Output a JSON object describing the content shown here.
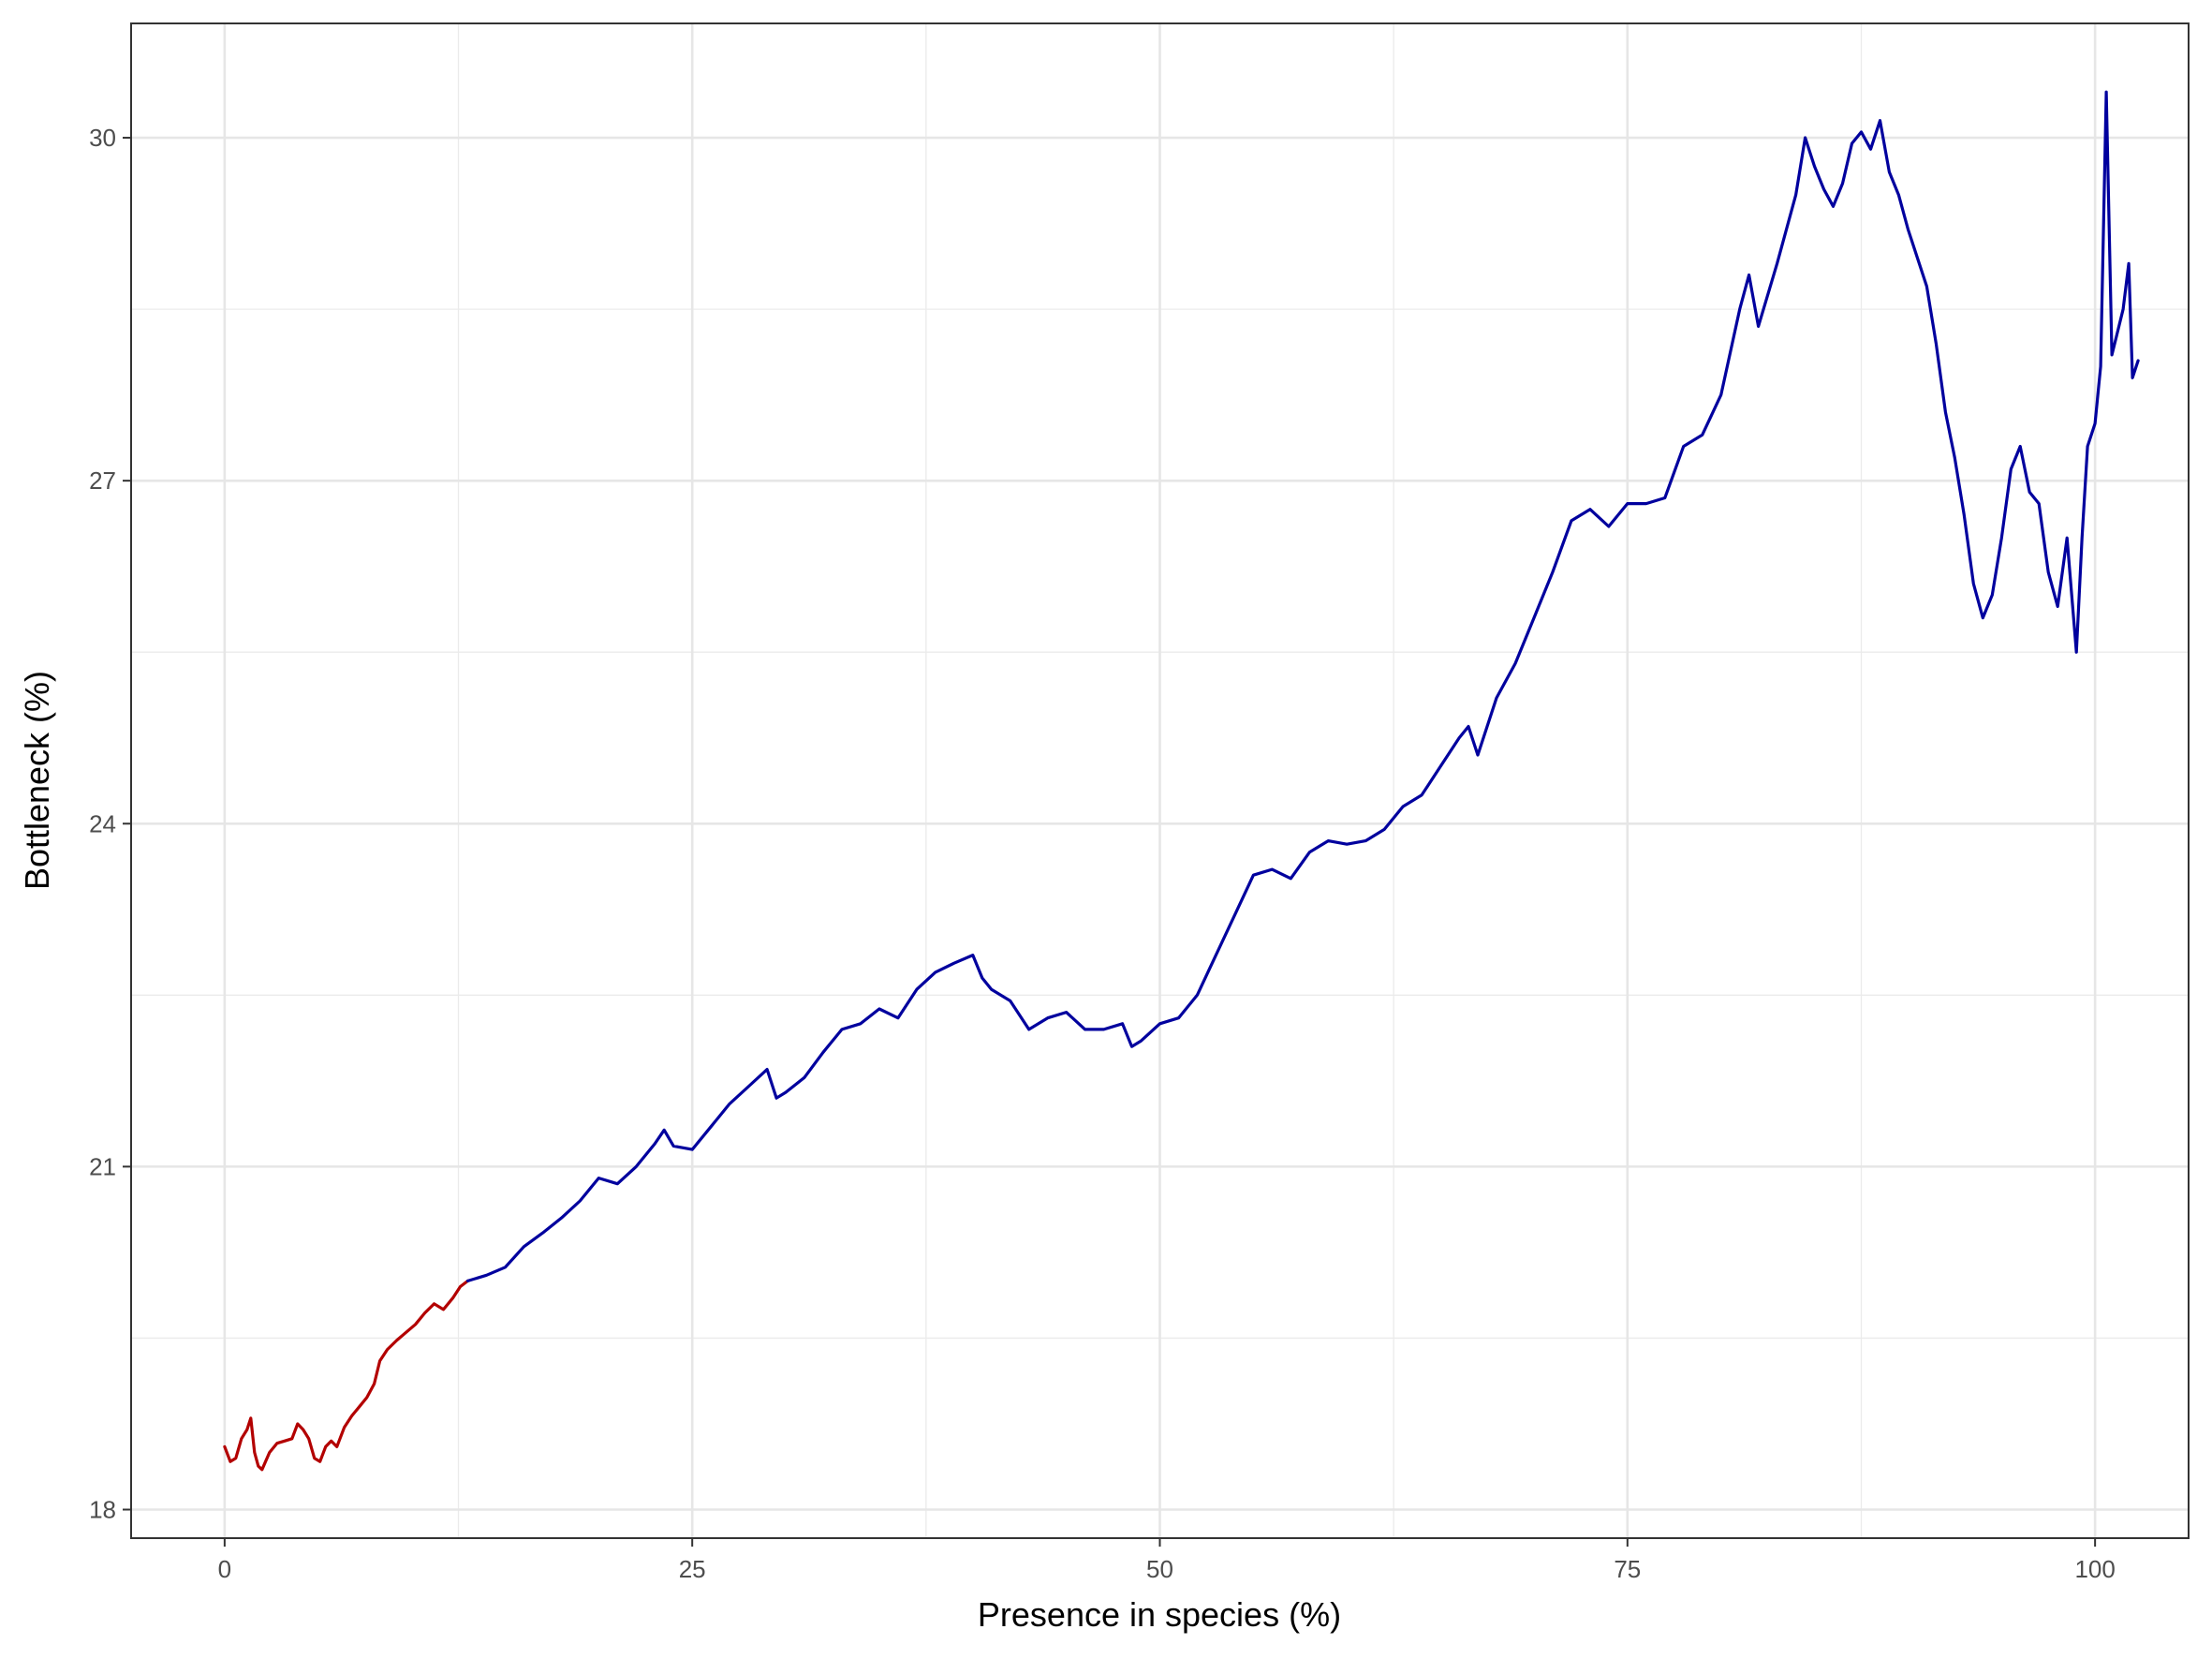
{
  "chart_data": {
    "type": "line",
    "title": "",
    "xlabel": "Presence in species (%)",
    "ylabel": "Bottleneck (%)",
    "xlim": [
      -5,
      105
    ],
    "ylim": [
      17.75,
      31.0
    ],
    "x_ticks": [
      0,
      25,
      50,
      75,
      100
    ],
    "x_tick_labels": [
      "0",
      "25",
      "50",
      "75",
      "100"
    ],
    "y_ticks": [
      18,
      21,
      24,
      27,
      30
    ],
    "y_tick_labels": [
      "18",
      "21",
      "24",
      "27",
      "30"
    ],
    "x_minor_ticks": [
      12.5,
      37.5,
      62.5,
      87.5
    ],
    "y_minor_ticks": [
      19.5,
      22.5,
      25.5,
      28.5
    ],
    "grid": true,
    "legend": "none",
    "series": [
      {
        "color": "#B30000",
        "points": [
          [
            0.0,
            18.55
          ],
          [
            0.3,
            18.42
          ],
          [
            0.6,
            18.45
          ],
          [
            0.9,
            18.62
          ],
          [
            1.2,
            18.7
          ],
          [
            1.4,
            18.8
          ],
          [
            1.6,
            18.5
          ],
          [
            1.8,
            18.38
          ],
          [
            2.0,
            18.35
          ],
          [
            2.4,
            18.5
          ],
          [
            2.8,
            18.58
          ],
          [
            3.2,
            18.6
          ],
          [
            3.6,
            18.62
          ],
          [
            3.9,
            18.75
          ],
          [
            4.2,
            18.7
          ],
          [
            4.5,
            18.62
          ],
          [
            4.8,
            18.45
          ],
          [
            5.1,
            18.42
          ],
          [
            5.4,
            18.55
          ],
          [
            5.7,
            18.6
          ],
          [
            6.0,
            18.55
          ],
          [
            6.4,
            18.72
          ],
          [
            6.8,
            18.82
          ],
          [
            7.2,
            18.9
          ],
          [
            7.6,
            18.98
          ],
          [
            8.0,
            19.1
          ],
          [
            8.3,
            19.3
          ],
          [
            8.7,
            19.4
          ],
          [
            9.2,
            19.48
          ],
          [
            9.7,
            19.55
          ],
          [
            10.2,
            19.62
          ],
          [
            10.7,
            19.72
          ],
          [
            11.2,
            19.8
          ],
          [
            11.7,
            19.75
          ],
          [
            12.2,
            19.85
          ],
          [
            12.6,
            19.95
          ],
          [
            13.0,
            20.0
          ]
        ]
      },
      {
        "color": "#00009E",
        "points": [
          [
            13.0,
            20.0
          ],
          [
            14.0,
            20.05
          ],
          [
            15.0,
            20.12
          ],
          [
            16.0,
            20.3
          ],
          [
            17.0,
            20.42
          ],
          [
            18.0,
            20.55
          ],
          [
            19.0,
            20.7
          ],
          [
            20.0,
            20.9
          ],
          [
            21.0,
            20.85
          ],
          [
            22.0,
            21.0
          ],
          [
            23.0,
            21.2
          ],
          [
            23.5,
            21.32
          ],
          [
            24.0,
            21.18
          ],
          [
            25.0,
            21.15
          ],
          [
            26.0,
            21.35
          ],
          [
            27.0,
            21.55
          ],
          [
            28.0,
            21.7
          ],
          [
            29.0,
            21.85
          ],
          [
            29.5,
            21.6
          ],
          [
            30.0,
            21.65
          ],
          [
            31.0,
            21.78
          ],
          [
            32.0,
            22.0
          ],
          [
            33.0,
            22.2
          ],
          [
            34.0,
            22.25
          ],
          [
            35.0,
            22.38
          ],
          [
            36.0,
            22.3
          ],
          [
            37.0,
            22.55
          ],
          [
            38.0,
            22.7
          ],
          [
            39.0,
            22.78
          ],
          [
            40.0,
            22.85
          ],
          [
            40.5,
            22.65
          ],
          [
            41.0,
            22.55
          ],
          [
            42.0,
            22.45
          ],
          [
            43.0,
            22.2
          ],
          [
            44.0,
            22.3
          ],
          [
            45.0,
            22.35
          ],
          [
            46.0,
            22.2
          ],
          [
            47.0,
            22.2
          ],
          [
            48.0,
            22.25
          ],
          [
            48.5,
            22.05
          ],
          [
            49.0,
            22.1
          ],
          [
            50.0,
            22.25
          ],
          [
            51.0,
            22.3
          ],
          [
            52.0,
            22.5
          ],
          [
            53.0,
            22.85
          ],
          [
            54.0,
            23.2
          ],
          [
            55.0,
            23.55
          ],
          [
            56.0,
            23.6
          ],
          [
            57.0,
            23.52
          ],
          [
            58.0,
            23.75
          ],
          [
            59.0,
            23.85
          ],
          [
            60.0,
            23.82
          ],
          [
            61.0,
            23.85
          ],
          [
            62.0,
            23.95
          ],
          [
            63.0,
            24.15
          ],
          [
            64.0,
            24.25
          ],
          [
            65.0,
            24.5
          ],
          [
            66.0,
            24.75
          ],
          [
            66.5,
            24.85
          ],
          [
            67.0,
            24.6
          ],
          [
            68.0,
            25.1
          ],
          [
            69.0,
            25.4
          ],
          [
            70.0,
            25.8
          ],
          [
            71.0,
            26.2
          ],
          [
            72.0,
            26.65
          ],
          [
            73.0,
            26.75
          ],
          [
            74.0,
            26.6
          ],
          [
            75.0,
            26.8
          ],
          [
            76.0,
            26.8
          ],
          [
            77.0,
            26.85
          ],
          [
            78.0,
            27.3
          ],
          [
            79.0,
            27.4
          ],
          [
            80.0,
            27.75
          ],
          [
            81.0,
            28.5
          ],
          [
            81.5,
            28.8
          ],
          [
            82.0,
            28.35
          ],
          [
            83.0,
            28.9
          ],
          [
            84.0,
            29.5
          ],
          [
            84.5,
            30.0
          ],
          [
            85.0,
            29.75
          ],
          [
            85.5,
            29.55
          ],
          [
            86.0,
            29.4
          ],
          [
            86.5,
            29.6
          ],
          [
            87.0,
            29.95
          ],
          [
            87.5,
            30.05
          ],
          [
            88.0,
            29.9
          ],
          [
            88.5,
            30.15
          ],
          [
            89.0,
            29.7
          ],
          [
            89.5,
            29.5
          ],
          [
            90.0,
            29.2
          ],
          [
            90.5,
            28.95
          ],
          [
            91.0,
            28.7
          ],
          [
            91.5,
            28.2
          ],
          [
            92.0,
            27.6
          ],
          [
            92.5,
            27.2
          ],
          [
            93.0,
            26.7
          ],
          [
            93.5,
            26.1
          ],
          [
            94.0,
            25.8
          ],
          [
            94.5,
            26.0
          ],
          [
            95.0,
            26.5
          ],
          [
            95.5,
            27.1
          ],
          [
            96.0,
            27.3
          ],
          [
            96.5,
            26.9
          ],
          [
            97.0,
            26.8
          ],
          [
            97.5,
            26.2
          ],
          [
            98.0,
            25.9
          ],
          [
            98.5,
            26.5
          ],
          [
            99.0,
            25.5
          ],
          [
            99.3,
            26.5
          ],
          [
            99.6,
            27.3
          ],
          [
            100.0,
            27.5
          ],
          [
            100.3,
            28.0
          ],
          [
            100.6,
            30.4
          ],
          [
            100.9,
            28.1
          ],
          [
            101.2,
            28.3
          ],
          [
            101.5,
            28.5
          ],
          [
            101.8,
            28.9
          ],
          [
            102.0,
            27.9
          ],
          [
            102.3,
            28.05
          ]
        ]
      }
    ]
  }
}
